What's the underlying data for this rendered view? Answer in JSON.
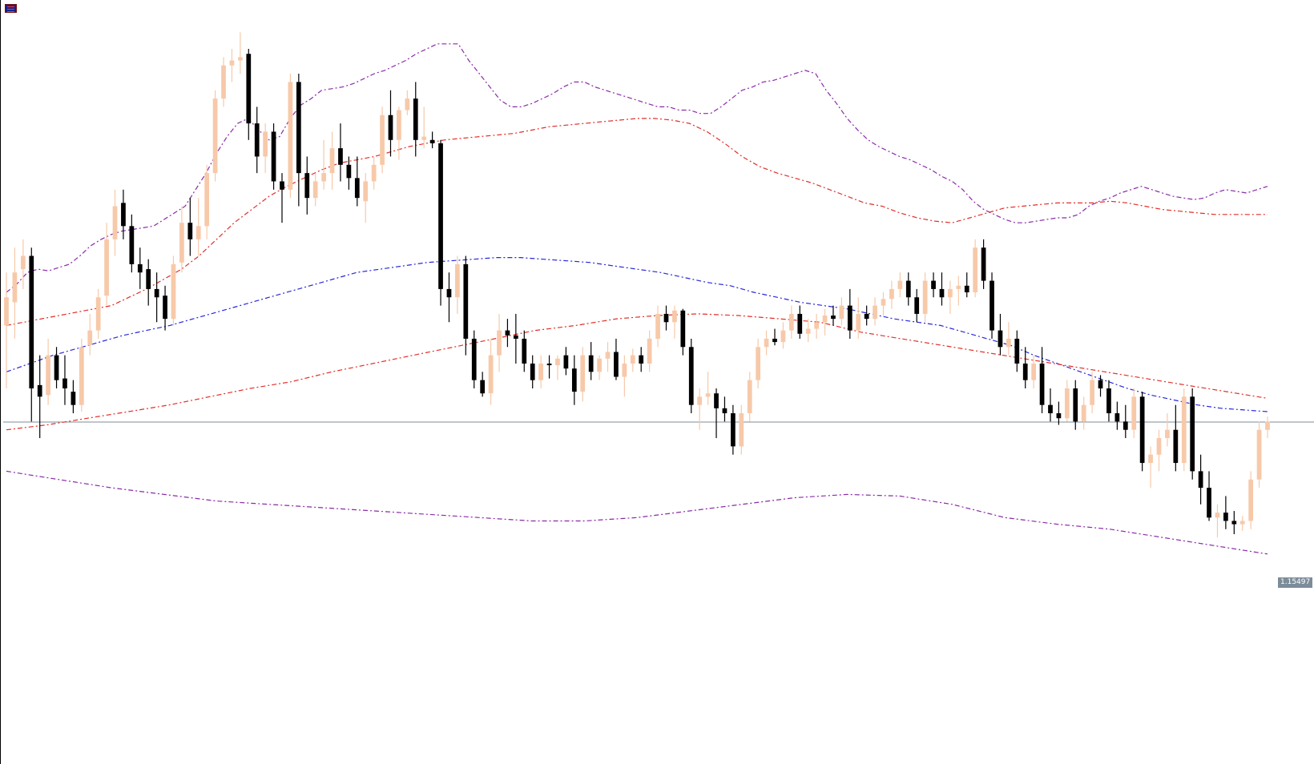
{
  "chart_data": {
    "type": "candlestick",
    "y_top_price": 1.179,
    "y_bottom_price": 1.135,
    "current_price": 1.15497,
    "current_price_label": "1.15497",
    "candles": [
      [
        1.1608,
        1.164,
        1.157,
        1.1625
      ],
      [
        1.1622,
        1.1655,
        1.16,
        1.164
      ],
      [
        1.1642,
        1.166,
        1.163,
        1.165
      ],
      [
        1.165,
        1.1655,
        1.155,
        1.157
      ],
      [
        1.1572,
        1.159,
        1.154,
        1.1565
      ],
      [
        1.1566,
        1.16,
        1.156,
        1.159
      ],
      [
        1.159,
        1.1595,
        1.157,
        1.1575
      ],
      [
        1.1576,
        1.159,
        1.156,
        1.157
      ],
      [
        1.1568,
        1.1575,
        1.1555,
        1.156
      ],
      [
        1.156,
        1.16,
        1.1556,
        1.1595
      ],
      [
        1.1596,
        1.1615,
        1.159,
        1.1605
      ],
      [
        1.1605,
        1.163,
        1.16,
        1.1625
      ],
      [
        1.1626,
        1.167,
        1.162,
        1.166
      ],
      [
        1.166,
        1.169,
        1.165,
        1.168
      ],
      [
        1.1682,
        1.169,
        1.166,
        1.1668
      ],
      [
        1.1668,
        1.1675,
        1.164,
        1.1645
      ],
      [
        1.1645,
        1.1655,
        1.163,
        1.164
      ],
      [
        1.1642,
        1.1648,
        1.162,
        1.163
      ],
      [
        1.163,
        1.164,
        1.161,
        1.1625
      ],
      [
        1.1626,
        1.1632,
        1.1605,
        1.1612
      ],
      [
        1.1612,
        1.165,
        1.1608,
        1.1645
      ],
      [
        1.1646,
        1.168,
        1.164,
        1.167
      ],
      [
        1.167,
        1.1685,
        1.165,
        1.166
      ],
      [
        1.166,
        1.1685,
        1.165,
        1.1668
      ],
      [
        1.1668,
        1.1705,
        1.166,
        1.17
      ],
      [
        1.17,
        1.175,
        1.1695,
        1.1745
      ],
      [
        1.1745,
        1.177,
        1.174,
        1.1765
      ],
      [
        1.1765,
        1.1775,
        1.1755,
        1.1768
      ],
      [
        1.1768,
        1.1785,
        1.176,
        1.177
      ],
      [
        1.1772,
        1.1775,
        1.172,
        1.173
      ],
      [
        1.173,
        1.174,
        1.17,
        1.171
      ],
      [
        1.171,
        1.173,
        1.17,
        1.1725
      ],
      [
        1.1725,
        1.173,
        1.169,
        1.1695
      ],
      [
        1.1695,
        1.17,
        1.167,
        1.169
      ],
      [
        1.169,
        1.176,
        1.1685,
        1.1755
      ],
      [
        1.1755,
        1.176,
        1.168,
        1.17
      ],
      [
        1.17,
        1.171,
        1.1675,
        1.1685
      ],
      [
        1.1685,
        1.17,
        1.168,
        1.1695
      ],
      [
        1.1695,
        1.172,
        1.169,
        1.17
      ],
      [
        1.17,
        1.1725,
        1.169,
        1.1715
      ],
      [
        1.1715,
        1.173,
        1.1695,
        1.1705
      ],
      [
        1.1705,
        1.171,
        1.169,
        1.1697
      ],
      [
        1.1697,
        1.171,
        1.168,
        1.1685
      ],
      [
        1.1683,
        1.17,
        1.167,
        1.1695
      ],
      [
        1.1695,
        1.171,
        1.169,
        1.1705
      ],
      [
        1.1705,
        1.174,
        1.17,
        1.1735
      ],
      [
        1.1735,
        1.175,
        1.171,
        1.172
      ],
      [
        1.172,
        1.174,
        1.1708,
        1.1738
      ],
      [
        1.1738,
        1.175,
        1.1735,
        1.1745
      ],
      [
        1.1745,
        1.1755,
        1.171,
        1.172
      ],
      [
        1.172,
        1.174,
        1.1715,
        1.1722
      ],
      [
        1.172,
        1.1725,
        1.1715,
        1.1718
      ],
      [
        1.1718,
        1.172,
        1.162,
        1.163
      ],
      [
        1.163,
        1.164,
        1.161,
        1.1625
      ],
      [
        1.1625,
        1.165,
        1.1615,
        1.1645
      ],
      [
        1.1645,
        1.165,
        1.159,
        1.16
      ],
      [
        1.16,
        1.1605,
        1.157,
        1.1575
      ],
      [
        1.1575,
        1.158,
        1.1565,
        1.1567
      ],
      [
        1.1567,
        1.16,
        1.156,
        1.159
      ],
      [
        1.159,
        1.1615,
        1.158,
        1.1605
      ],
      [
        1.1605,
        1.1612,
        1.1595,
        1.1602
      ],
      [
        1.1602,
        1.1615,
        1.1585,
        1.16
      ],
      [
        1.16,
        1.1605,
        1.158,
        1.1585
      ],
      [
        1.1585,
        1.159,
        1.157,
        1.1575
      ],
      [
        1.1575,
        1.159,
        1.157,
        1.1585
      ],
      [
        1.1585,
        1.159,
        1.1576,
        1.1584
      ],
      [
        1.1584,
        1.159,
        1.1575,
        1.1588
      ],
      [
        1.159,
        1.1595,
        1.1578,
        1.1582
      ],
      [
        1.1582,
        1.159,
        1.156,
        1.1568
      ],
      [
        1.1568,
        1.1595,
        1.1562,
        1.159
      ],
      [
        1.159,
        1.1598,
        1.1575,
        1.158
      ],
      [
        1.158,
        1.159,
        1.1575,
        1.1588
      ],
      [
        1.1588,
        1.1598,
        1.158,
        1.1592
      ],
      [
        1.1592,
        1.16,
        1.1575,
        1.1577
      ],
      [
        1.1577,
        1.159,
        1.1565,
        1.1585
      ],
      [
        1.1585,
        1.1594,
        1.158,
        1.159
      ],
      [
        1.159,
        1.1595,
        1.158,
        1.1585
      ],
      [
        1.1585,
        1.1605,
        1.158,
        1.16
      ],
      [
        1.16,
        1.162,
        1.1595,
        1.1615
      ],
      [
        1.1615,
        1.162,
        1.1605,
        1.161
      ],
      [
        1.161,
        1.162,
        1.16,
        1.1617
      ],
      [
        1.1617,
        1.1618,
        1.159,
        1.1595
      ],
      [
        1.1595,
        1.16,
        1.1555,
        1.156
      ],
      [
        1.156,
        1.157,
        1.1545,
        1.1565
      ],
      [
        1.1565,
        1.158,
        1.156,
        1.1567
      ],
      [
        1.1567,
        1.157,
        1.154,
        1.1558
      ],
      [
        1.1558,
        1.1565,
        1.155,
        1.1555
      ],
      [
        1.1555,
        1.156,
        1.153,
        1.1535
      ],
      [
        1.1535,
        1.156,
        1.153,
        1.1555
      ],
      [
        1.1555,
        1.158,
        1.155,
        1.1575
      ],
      [
        1.1575,
        1.16,
        1.157,
        1.1595
      ],
      [
        1.1595,
        1.1605,
        1.159,
        1.16
      ],
      [
        1.16,
        1.1606,
        1.1596,
        1.1598
      ],
      [
        1.1598,
        1.161,
        1.1594,
        1.1605
      ],
      [
        1.1605,
        1.162,
        1.16,
        1.1615
      ],
      [
        1.1615,
        1.162,
        1.16,
        1.1603
      ],
      [
        1.1603,
        1.1612,
        1.1598,
        1.1606
      ],
      [
        1.1606,
        1.1615,
        1.16,
        1.161
      ],
      [
        1.161,
        1.1618,
        1.1602,
        1.1614
      ],
      [
        1.1614,
        1.162,
        1.1608,
        1.1612
      ],
      [
        1.1612,
        1.1625,
        1.1608,
        1.162
      ],
      [
        1.162,
        1.163,
        1.16,
        1.1605
      ],
      [
        1.1605,
        1.1625,
        1.16,
        1.1615
      ],
      [
        1.1615,
        1.162,
        1.1608,
        1.1612
      ],
      [
        1.1612,
        1.1625,
        1.1608,
        1.162
      ],
      [
        1.162,
        1.1628,
        1.1614,
        1.1624
      ],
      [
        1.1624,
        1.1635,
        1.1618,
        1.163
      ],
      [
        1.163,
        1.164,
        1.1625,
        1.1635
      ],
      [
        1.1635,
        1.164,
        1.162,
        1.1625
      ],
      [
        1.1625,
        1.163,
        1.161,
        1.1615
      ],
      [
        1.1615,
        1.164,
        1.161,
        1.1635
      ],
      [
        1.1635,
        1.164,
        1.1625,
        1.163
      ],
      [
        1.163,
        1.164,
        1.162,
        1.1625
      ],
      [
        1.1625,
        1.1635,
        1.1615,
        1.163
      ],
      [
        1.163,
        1.1638,
        1.162,
        1.1632
      ],
      [
        1.1632,
        1.164,
        1.1625,
        1.1628
      ],
      [
        1.1628,
        1.166,
        1.1625,
        1.1655
      ],
      [
        1.1655,
        1.166,
        1.163,
        1.1635
      ],
      [
        1.1635,
        1.164,
        1.16,
        1.1605
      ],
      [
        1.1605,
        1.1615,
        1.159,
        1.1595
      ],
      [
        1.1595,
        1.161,
        1.159,
        1.16
      ],
      [
        1.16,
        1.1605,
        1.158,
        1.1585
      ],
      [
        1.1585,
        1.1595,
        1.157,
        1.1575
      ],
      [
        1.1575,
        1.159,
        1.157,
        1.1585
      ],
      [
        1.1585,
        1.1595,
        1.1555,
        1.156
      ],
      [
        1.156,
        1.157,
        1.155,
        1.1555
      ],
      [
        1.1555,
        1.1562,
        1.1548,
        1.1552
      ],
      [
        1.1552,
        1.1575,
        1.155,
        1.157
      ],
      [
        1.157,
        1.1575,
        1.1545,
        1.155
      ],
      [
        1.155,
        1.1565,
        1.1545,
        1.156
      ],
      [
        1.156,
        1.158,
        1.1555,
        1.1575
      ],
      [
        1.1575,
        1.1578,
        1.1565,
        1.157
      ],
      [
        1.157,
        1.1575,
        1.155,
        1.1555
      ],
      [
        1.1555,
        1.1562,
        1.1545,
        1.155
      ],
      [
        1.155,
        1.156,
        1.154,
        1.1545
      ],
      [
        1.1545,
        1.157,
        1.154,
        1.1565
      ],
      [
        1.1565,
        1.1568,
        1.152,
        1.1525
      ],
      [
        1.1525,
        1.1535,
        1.151,
        1.153
      ],
      [
        1.153,
        1.1545,
        1.152,
        1.154
      ],
      [
        1.154,
        1.1555,
        1.1535,
        1.1545
      ],
      [
        1.1545,
        1.156,
        1.152,
        1.1525
      ],
      [
        1.1525,
        1.157,
        1.152,
        1.1565
      ],
      [
        1.1565,
        1.157,
        1.1515,
        1.152
      ],
      [
        1.152,
        1.153,
        1.15,
        1.151
      ],
      [
        1.151,
        1.152,
        1.149,
        1.1492
      ],
      [
        1.1492,
        1.15,
        1.148,
        1.1495
      ],
      [
        1.1495,
        1.1505,
        1.1485,
        1.149
      ],
      [
        1.149,
        1.1496,
        1.1482,
        1.1488
      ],
      [
        1.1488,
        1.1493,
        1.1484,
        1.149
      ],
      [
        1.149,
        1.152,
        1.1485,
        1.1515
      ],
      [
        1.1515,
        1.155,
        1.151,
        1.1545
      ],
      [
        1.1545,
        1.1553,
        1.154,
        1.155
      ]
    ],
    "bands": {
      "upper_outer": [
        1.1628,
        1.1633,
        1.164,
        1.1642,
        1.1641,
        1.1643,
        1.1645,
        1.165,
        1.1656,
        1.166,
        1.1663,
        1.1665,
        1.1666,
        1.1667,
        1.1668,
        1.1672,
        1.1676,
        1.168,
        1.169,
        1.17,
        1.1712,
        1.1722,
        1.173,
        1.1733,
        1.1726,
        1.172,
        1.1722,
        1.1733,
        1.1741,
        1.1745,
        1.175,
        1.1751,
        1.1752,
        1.1754,
        1.1757,
        1.176,
        1.1762,
        1.1765,
        1.1768,
        1.1772,
        1.1775,
        1.1778,
        1.1778,
        1.1778,
        1.1768,
        1.176,
        1.1752,
        1.1744,
        1.174,
        1.174,
        1.1742,
        1.1745,
        1.1748,
        1.1752,
        1.1755,
        1.1755,
        1.1752,
        1.175,
        1.1748,
        1.1746,
        1.1744,
        1.1742,
        1.174,
        1.174,
        1.1738,
        1.1738,
        1.1736,
        1.1736,
        1.174,
        1.1745,
        1.175,
        1.1752,
        1.1755,
        1.1756,
        1.1758,
        1.176,
        1.1762,
        1.176,
        1.175,
        1.1742,
        1.1733,
        1.1726,
        1.172,
        1.1716,
        1.1713,
        1.171,
        1.1708,
        1.1705,
        1.1702,
        1.1698,
        1.1695,
        1.169,
        1.1683,
        1.1678,
        1.1675,
        1.1672,
        1.167,
        1.167,
        1.1671,
        1.1672,
        1.1673,
        1.1673,
        1.1675,
        1.168,
        1.1683,
        1.1685,
        1.1688,
        1.169,
        1.1692,
        1.169,
        1.1688,
        1.1686,
        1.1685,
        1.1684,
        1.1685,
        1.1688,
        1.169,
        1.1689,
        1.1688,
        1.169,
        1.1692
      ],
      "upper_inner": [
        1.1608,
        1.161,
        1.1612,
        1.1614,
        1.1616,
        1.1618,
        1.162,
        1.1625,
        1.163,
        1.1636,
        1.1642,
        1.165,
        1.166,
        1.167,
        1.1678,
        1.1686,
        1.1692,
        1.1697,
        1.1702,
        1.1706,
        1.1708,
        1.171,
        1.1713,
        1.1716,
        1.1718,
        1.172,
        1.1721,
        1.1722,
        1.1723,
        1.1724,
        1.1726,
        1.1728,
        1.1729,
        1.173,
        1.1731,
        1.1732,
        1.1733,
        1.1733,
        1.1732,
        1.173,
        1.1725,
        1.1718,
        1.171,
        1.1704,
        1.17,
        1.1697,
        1.1694,
        1.169,
        1.1686,
        1.1682,
        1.168,
        1.1676,
        1.1673,
        1.1671,
        1.167,
        1.1673,
        1.1676,
        1.1679,
        1.168,
        1.1681,
        1.1682,
        1.1682,
        1.1682,
        1.1683,
        1.1682,
        1.168,
        1.1678,
        1.1677,
        1.1676,
        1.1675,
        1.1675,
        1.1675,
        1.1675
      ],
      "middle": [
        1.158,
        1.1585,
        1.159,
        1.1594,
        1.1598,
        1.1602,
        1.1605,
        1.1608,
        1.1612,
        1.1616,
        1.162,
        1.1624,
        1.1628,
        1.1632,
        1.1636,
        1.164,
        1.1642,
        1.1644,
        1.1646,
        1.1647,
        1.1648,
        1.1649,
        1.1649,
        1.1648,
        1.1647,
        1.1646,
        1.1644,
        1.1642,
        1.164,
        1.1637,
        1.1634,
        1.1632,
        1.1628,
        1.1625,
        1.1622,
        1.162,
        1.1618,
        1.1615,
        1.1612,
        1.161,
        1.1608,
        1.1604,
        1.16,
        1.1596,
        1.159,
        1.1585,
        1.158,
        1.1575,
        1.157,
        1.1566,
        1.1563,
        1.156,
        1.1558,
        1.1557,
        1.1556
      ],
      "lower_inner": [
        1.1545,
        1.1548,
        1.1552,
        1.1556,
        1.156,
        1.1565,
        1.157,
        1.1574,
        1.158,
        1.1585,
        1.159,
        1.1595,
        1.16,
        1.1605,
        1.1608,
        1.1612,
        1.1614,
        1.1615,
        1.1614,
        1.1612,
        1.161,
        1.1604,
        1.16,
        1.1596,
        1.1592,
        1.1588,
        1.1584,
        1.158,
        1.1576,
        1.1572,
        1.1568,
        1.1564
      ],
      "lower_outer": [
        1.152,
        1.1515,
        1.151,
        1.1506,
        1.1502,
        1.15,
        1.1498,
        1.1496,
        1.1494,
        1.1492,
        1.149,
        1.149,
        1.1492,
        1.1496,
        1.15,
        1.1504,
        1.1506,
        1.1505,
        1.15,
        1.1492,
        1.1488,
        1.1485,
        1.148,
        1.1475,
        1.147
      ]
    },
    "band_colors": {
      "outer": "#8a2ba8",
      "inner": "#e0302a",
      "middle": "#2828d8",
      "center": "#a545e0"
    },
    "bull_color": "#f7c9a9",
    "bear_color": "#000000",
    "current_line_color": "#7d8c99"
  }
}
